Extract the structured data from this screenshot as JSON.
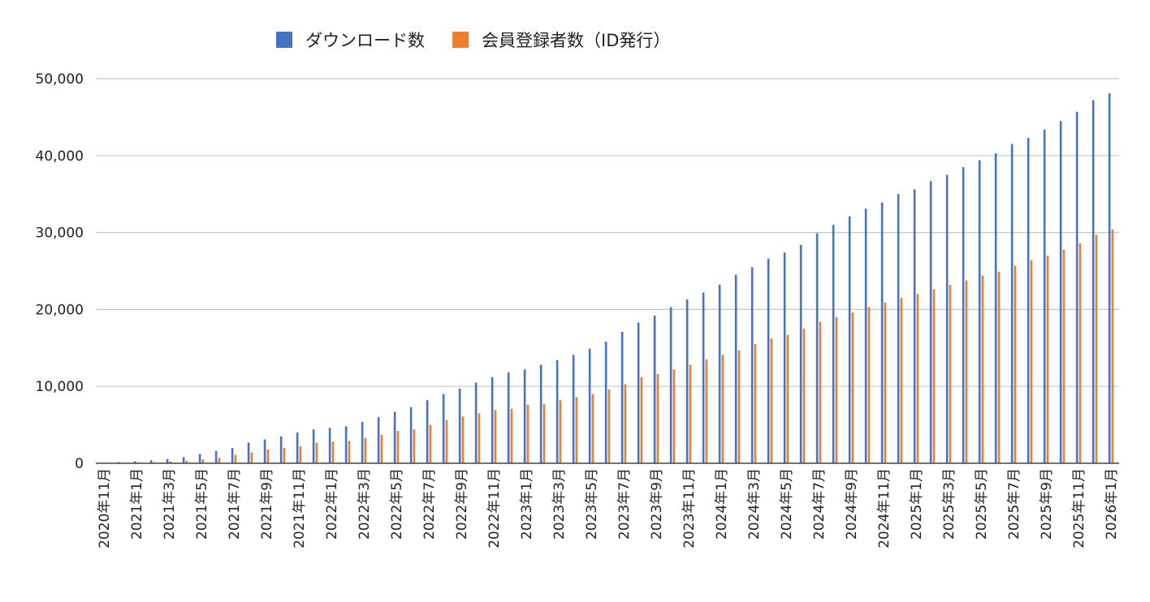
{
  "chart_data": {
    "type": "bar",
    "title": "",
    "xlabel": "",
    "ylabel": "",
    "ylim": [
      0,
      50000
    ],
    "yticks": [
      "0",
      "10,000",
      "20,000",
      "30,000",
      "40,000",
      "50,000"
    ],
    "grid": true,
    "legend_position": "top-center",
    "colors": {
      "downloads": "#4472C4",
      "members": "#ED7D31",
      "grid": "#c8c8c8",
      "axis": "#444444"
    },
    "tick_labels": [
      "2020年11月",
      "2021年1月",
      "2021年3月",
      "2021年5月",
      "2021年7月",
      "2021年9月",
      "2021年11月",
      "2022年1月",
      "2022年3月",
      "2022年5月",
      "2022年7月",
      "2022年9月",
      "2022年11月",
      "2023年1月",
      "2023年3月",
      "2023年5月",
      "2023年7月",
      "2023年9月",
      "2023年11月",
      "2024年1月",
      "2024年3月",
      "2024年5月",
      "2024年7月",
      "2024年9月",
      "2024年11月",
      "2025年1月",
      "2025年3月",
      "2025年5月",
      "2025年7月",
      "2025年9月",
      "2025年11月",
      "2026年1月"
    ],
    "categories": [
      "2020年11月",
      "2020年12月",
      "2021年1月",
      "2021年2月",
      "2021年3月",
      "2021年4月",
      "2021年5月",
      "2021年6月",
      "2021年7月",
      "2021年8月",
      "2021年9月",
      "2021年10月",
      "2021年11月",
      "2021年12月",
      "2022年1月",
      "2022年2月",
      "2022年3月",
      "2022年4月",
      "2022年5月",
      "2022年6月",
      "2022年7月",
      "2022年8月",
      "2022年9月",
      "2022年10月",
      "2022年11月",
      "2022年12月",
      "2023年1月",
      "2023年2月",
      "2023年3月",
      "2023年4月",
      "2023年5月",
      "2023年6月",
      "2023年7月",
      "2023年8月",
      "2023年9月",
      "2023年10月",
      "2023年11月",
      "2023年12月",
      "2024年1月",
      "2024年2月",
      "2024年3月",
      "2024年4月",
      "2024年5月",
      "2024年6月",
      "2024年7月",
      "2024年8月",
      "2024年9月",
      "2024年10月",
      "2024年11月",
      "2024年12月",
      "2025年1月",
      "2025年2月",
      "2025年3月",
      "2025年4月",
      "2025年5月",
      "2025年6月",
      "2025年7月",
      "2025年8月",
      "2025年9月",
      "2025年10月",
      "2025年11月",
      "2025年12月",
      "2026年1月"
    ],
    "series": [
      {
        "name": "ダウンロード数",
        "values": [
          50,
          150,
          250,
          400,
          550,
          800,
          1200,
          1600,
          2000,
          2700,
          3100,
          3500,
          4000,
          4400,
          4600,
          4800,
          5400,
          6000,
          6700,
          7300,
          8200,
          9000,
          9700,
          10500,
          11200,
          11800,
          12200,
          12800,
          13400,
          14100,
          14900,
          15800,
          17100,
          18300,
          19200,
          20300,
          21300,
          22200,
          23200,
          24500,
          25500,
          26600,
          27400,
          28400,
          29900,
          31000,
          32100,
          33100,
          33900,
          35000,
          35600,
          36700,
          37500,
          38500,
          39400,
          40300,
          41500,
          42300,
          43400,
          44500,
          45700,
          47200,
          48100
        ]
      },
      {
        "name": "会員登録者数（ID発行）",
        "values": [
          20,
          50,
          100,
          150,
          250,
          350,
          500,
          700,
          1100,
          1400,
          1800,
          2000,
          2200,
          2700,
          2800,
          2900,
          3300,
          3700,
          4200,
          4400,
          5000,
          5600,
          6100,
          6500,
          6900,
          7100,
          7600,
          7700,
          8200,
          8600,
          9000,
          9600,
          10300,
          11200,
          11600,
          12200,
          12800,
          13500,
          14100,
          14700,
          15500,
          16200,
          16700,
          17500,
          18400,
          19000,
          19600,
          20300,
          20900,
          21500,
          22000,
          22600,
          23200,
          23800,
          24400,
          24900,
          25700,
          26400,
          27000,
          27800,
          28600,
          29700,
          30400
        ]
      }
    ]
  }
}
